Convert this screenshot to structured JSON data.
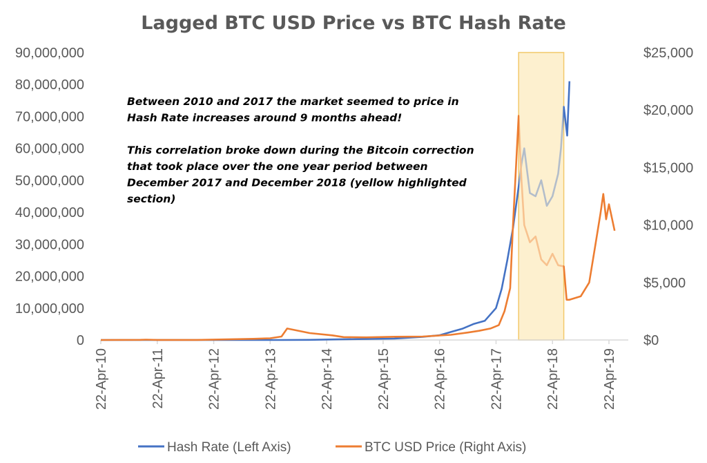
{
  "chart_data": {
    "type": "line",
    "title": "Lagged BTC USD Price vs BTC Hash Rate",
    "x_tick_labels": [
      "22-Apr-10",
      "22-Apr-11",
      "22-Apr-12",
      "22-Apr-13",
      "22-Apr-14",
      "22-Apr-15",
      "22-Apr-16",
      "22-Apr-17",
      "22-Apr-18",
      "22-Apr-19"
    ],
    "left_axis": {
      "ylim": [
        0,
        90000000
      ],
      "tick_labels": [
        "0",
        "10,000,000",
        "20,000,000",
        "30,000,000",
        "40,000,000",
        "50,000,000",
        "60,000,000",
        "70,000,000",
        "80,000,000",
        "90,000,000"
      ]
    },
    "right_axis": {
      "ylim": [
        0,
        25000
      ],
      "tick_labels": [
        "$0",
        "$5,000",
        "$10,000",
        "$15,000",
        "$20,000",
        "$25,000"
      ]
    },
    "highlight": {
      "start_year": 2017.7,
      "end_year": 2018.5,
      "fill": "#fdf0cf",
      "stroke": "#f2c869"
    },
    "legend_placement": "bottom",
    "grid": false,
    "series": [
      {
        "name": "Hash Rate (Left Axis)",
        "axis": "left",
        "color": "#4472c4",
        "points": [
          [
            2010.3,
            0
          ],
          [
            2011.0,
            0
          ],
          [
            2012.0,
            0
          ],
          [
            2013.0,
            0
          ],
          [
            2013.5,
            2000
          ],
          [
            2014.0,
            50000
          ],
          [
            2014.5,
            200000
          ],
          [
            2015.0,
            300000
          ],
          [
            2015.5,
            450000
          ],
          [
            2016.0,
            1000000
          ],
          [
            2016.3,
            1500000
          ],
          [
            2016.5,
            2500000
          ],
          [
            2016.7,
            3500000
          ],
          [
            2016.9,
            5000000
          ],
          [
            2017.1,
            6000000
          ],
          [
            2017.3,
            10000000
          ],
          [
            2017.4,
            16000000
          ],
          [
            2017.5,
            25000000
          ],
          [
            2017.6,
            35000000
          ],
          [
            2017.7,
            48000000
          ],
          [
            2017.75,
            55000000
          ],
          [
            2017.8,
            60000000
          ],
          [
            2017.9,
            46000000
          ],
          [
            2018.0,
            45000000
          ],
          [
            2018.1,
            50000000
          ],
          [
            2018.2,
            42000000
          ],
          [
            2018.3,
            45000000
          ],
          [
            2018.4,
            52000000
          ],
          [
            2018.45,
            60000000
          ],
          [
            2018.5,
            73000000
          ],
          [
            2018.56,
            64000000
          ],
          [
            2018.6,
            81000000
          ]
        ]
      },
      {
        "name": "BTC USD Price (Right Axis)",
        "axis": "right",
        "color": "#ed7d31",
        "points": [
          [
            2010.3,
            0
          ],
          [
            2011.0,
            10
          ],
          [
            2011.1,
            30
          ],
          [
            2011.3,
            5
          ],
          [
            2012.0,
            5
          ],
          [
            2013.0,
            100
          ],
          [
            2013.3,
            150
          ],
          [
            2013.5,
            300
          ],
          [
            2013.6,
            1000
          ],
          [
            2013.7,
            900
          ],
          [
            2014.0,
            600
          ],
          [
            2014.4,
            400
          ],
          [
            2014.6,
            250
          ],
          [
            2015.0,
            230
          ],
          [
            2015.5,
            280
          ],
          [
            2016.0,
            300
          ],
          [
            2016.5,
            450
          ],
          [
            2016.8,
            650
          ],
          [
            2017.0,
            800
          ],
          [
            2017.2,
            1000
          ],
          [
            2017.35,
            1300
          ],
          [
            2017.45,
            2500
          ],
          [
            2017.55,
            4500
          ],
          [
            2017.6,
            10000
          ],
          [
            2017.7,
            19500
          ],
          [
            2017.75,
            14000
          ],
          [
            2017.8,
            10000
          ],
          [
            2017.9,
            8500
          ],
          [
            2018.0,
            9000
          ],
          [
            2018.1,
            7000
          ],
          [
            2018.2,
            6500
          ],
          [
            2018.3,
            7500
          ],
          [
            2018.4,
            6500
          ],
          [
            2018.5,
            6400
          ],
          [
            2018.55,
            3500
          ],
          [
            2018.6,
            3500
          ],
          [
            2018.8,
            3800
          ],
          [
            2018.95,
            5000
          ],
          [
            2019.05,
            8000
          ],
          [
            2019.15,
            11000
          ],
          [
            2019.2,
            12700
          ],
          [
            2019.25,
            10500
          ],
          [
            2019.3,
            11800
          ],
          [
            2019.4,
            9500
          ]
        ]
      }
    ],
    "annotation": [
      "Between 2010 and 2017 the market seemed to price in",
      "Hash Rate increases around 9 months ahead!",
      "",
      "This correlation broke down during the Bitcoin correction",
      "that took place over the one year period between",
      "December 2017  and December 2018 (yellow highlighted",
      "section)"
    ]
  }
}
